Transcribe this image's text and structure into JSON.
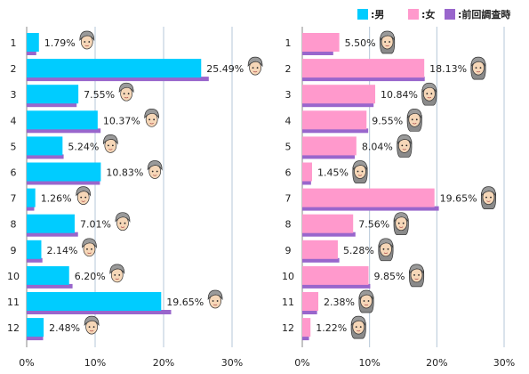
{
  "legend": [
    {
      "key": "male",
      "label": ":男",
      "color": "#00ccff"
    },
    {
      "key": "female",
      "label": ":女",
      "color": "#ff99cc"
    },
    {
      "key": "previous",
      "label": ":前回調査時",
      "color": "#9966cc"
    }
  ],
  "chart_data": [
    {
      "type": "bar",
      "orientation": "horizontal",
      "categories": [
        "1",
        "2",
        "3",
        "4",
        "5",
        "6",
        "7",
        "8",
        "9",
        "10",
        "11",
        "12"
      ],
      "series": [
        {
          "key": "current",
          "values": [
            1.79,
            25.49,
            7.55,
            10.37,
            5.24,
            10.83,
            1.26,
            7.01,
            2.14,
            6.2,
            19.65,
            2.48
          ],
          "color": "#00ccff"
        },
        {
          "key": "previous",
          "values": [
            1.4,
            26.6,
            7.3,
            10.8,
            5.4,
            10.7,
            1.1,
            7.5,
            2.3,
            6.7,
            21.1,
            2.4
          ],
          "color": "#9966cc"
        }
      ],
      "value_labels": [
        "1.79%",
        "25.49%",
        "7.55%",
        "10.37%",
        "5.24%",
        "10.83%",
        "1.26%",
        "7.01%",
        "2.14%",
        "6.20%",
        "19.65%",
        "2.48%"
      ],
      "x_ticks": [
        "0%",
        "10%",
        "20%",
        "30%"
      ],
      "xlim": [
        0,
        30
      ],
      "grid": true,
      "icon_names": [
        "male-face-icon"
      ]
    },
    {
      "type": "bar",
      "orientation": "horizontal",
      "categories": [
        "1",
        "2",
        "3",
        "4",
        "5",
        "6",
        "7",
        "8",
        "9",
        "10",
        "11",
        "12"
      ],
      "series": [
        {
          "key": "current",
          "values": [
            5.5,
            18.13,
            10.84,
            9.55,
            8.04,
            1.45,
            19.65,
            7.56,
            5.28,
            9.85,
            2.38,
            1.22
          ],
          "color": "#ff99cc"
        },
        {
          "key": "previous",
          "values": [
            4.6,
            18.2,
            10.6,
            9.8,
            7.8,
            1.3,
            20.3,
            7.9,
            5.5,
            10.1,
            2.2,
            1.0
          ],
          "color": "#9966cc"
        }
      ],
      "value_labels": [
        "5.50%",
        "18.13%",
        "10.84%",
        "9.55%",
        "8.04%",
        "1.45%",
        "19.65%",
        "7.56%",
        "5.28%",
        "9.85%",
        "2.38%",
        "1.22%"
      ],
      "x_ticks": [
        "0%",
        "10%",
        "20%",
        "30%"
      ],
      "xlim": [
        0,
        30
      ],
      "grid": true,
      "icon_names": [
        "female-face-icon"
      ]
    }
  ]
}
